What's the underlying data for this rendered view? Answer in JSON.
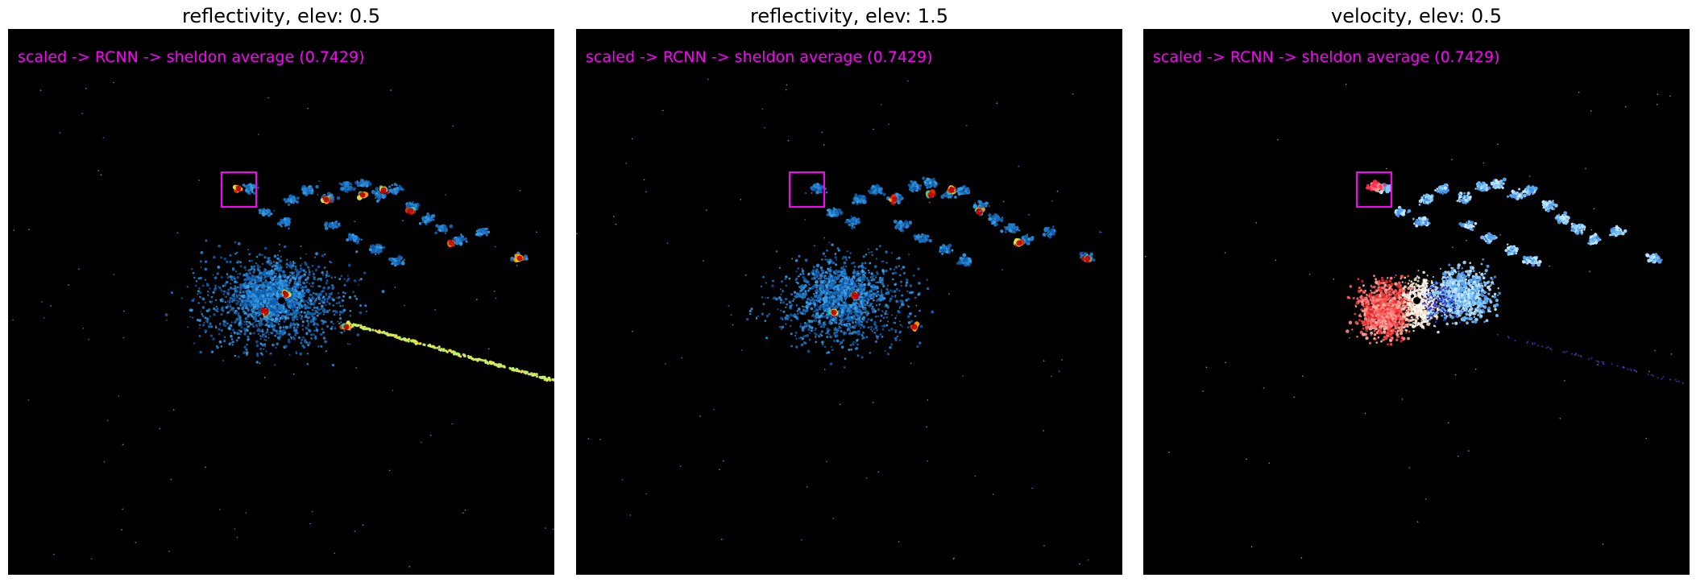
{
  "panels": [
    {
      "title": "reflectivity, elev: 0.5",
      "caption": "scaled -> RCNN -> sheldon average (0.7429)",
      "colormap": "reflectivity"
    },
    {
      "title": "reflectivity, elev: 1.5",
      "caption": "scaled -> RCNN -> sheldon average (0.7429)",
      "colormap": "reflectivity"
    },
    {
      "title": "velocity, elev: 0.5",
      "caption": "scaled -> RCNN -> sheldon average (0.7429)",
      "colormap": "velocity"
    }
  ],
  "colors": {
    "background": "#000000",
    "annotation": "#ff00ff",
    "reflectivity_low": "#1f78c8",
    "reflectivity_mid": "#f0e442",
    "reflectivity_high": "#c00000",
    "velocity_toward": "#ff4040",
    "velocity_away": "#80c8ff"
  }
}
